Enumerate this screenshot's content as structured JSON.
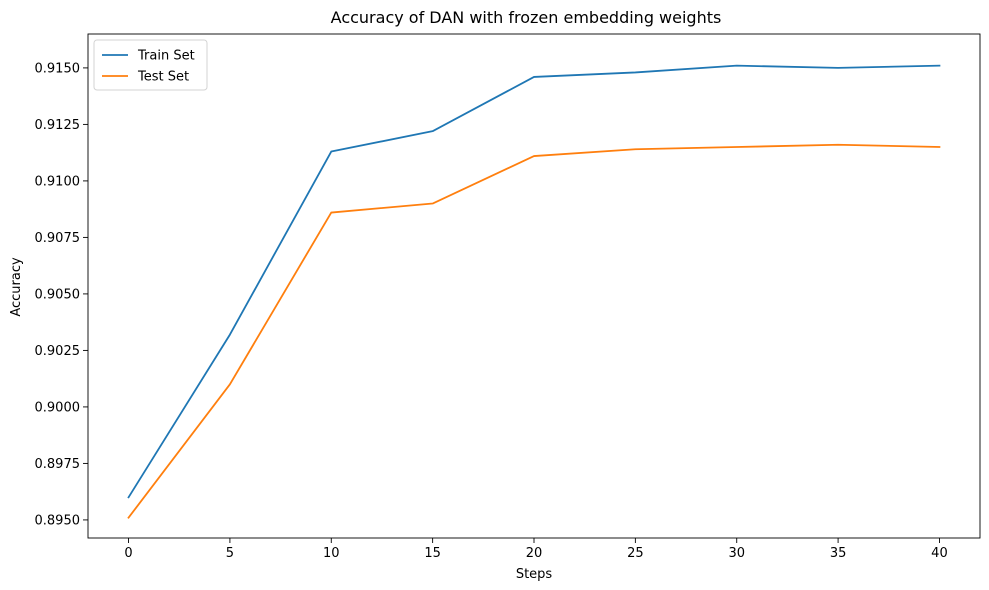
{
  "chart_data": {
    "type": "line",
    "title": "Accuracy of DAN with frozen embedding weights",
    "xlabel": "Steps",
    "ylabel": "Accuracy",
    "x": [
      0,
      5,
      10,
      15,
      20,
      25,
      30,
      35,
      40
    ],
    "xlim": [
      -2,
      42
    ],
    "ylim": [
      0.8942,
      0.9165
    ],
    "xticks": [
      0,
      5,
      10,
      15,
      20,
      25,
      30,
      35,
      40
    ],
    "yticks": [
      0.895,
      0.8975,
      0.9,
      0.9025,
      0.905,
      0.9075,
      0.91,
      0.9125,
      0.915
    ],
    "ytick_labels": [
      "0.8950",
      "0.8975",
      "0.9000",
      "0.9025",
      "0.9050",
      "0.9075",
      "0.9100",
      "0.9125",
      "0.9150"
    ],
    "grid": false,
    "legend_position": "top-left",
    "series": [
      {
        "name": "Train Set",
        "color": "#1f77b4",
        "values": [
          0.896,
          0.9032,
          0.9113,
          0.9122,
          0.9146,
          0.9148,
          0.9151,
          0.915,
          0.9151
        ]
      },
      {
        "name": "Test Set",
        "color": "#ff7f0e",
        "values": [
          0.8951,
          0.901,
          0.9086,
          0.909,
          0.9111,
          0.9114,
          0.9115,
          0.9116,
          0.9115
        ]
      }
    ]
  }
}
